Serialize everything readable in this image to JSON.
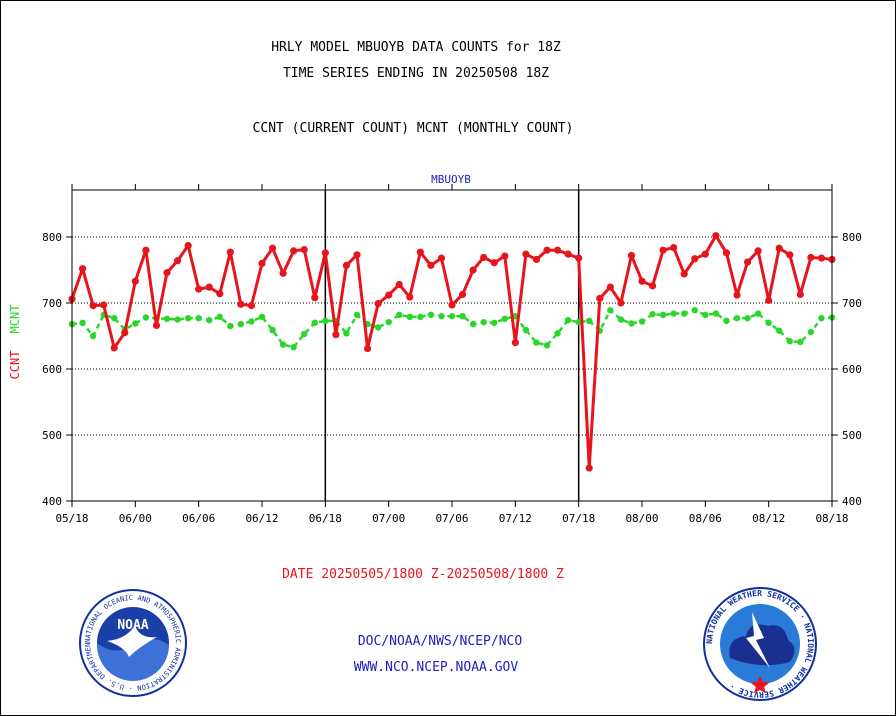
{
  "header": {
    "line1": "HRLY MODEL MBUOYB DATA COUNTS for 18Z",
    "line2": "TIME SERIES ENDING IN 20250508 18Z",
    "line3": "CCNT (CURRENT COUNT) MCNT (MONTHLY COUNT)"
  },
  "footer": {
    "date_range": "DATE 20250505/1800 Z-20250508/1800 Z",
    "org": "DOC/NOAA/NWS/NCEP/NCO",
    "url": "WWW.NCO.NCEP.NOAA.GOV"
  },
  "logos": {
    "noaa_text": "NOAA",
    "noaa_ring": "NATIONAL OCEANIC AND ATMOSPHERIC ADMINISTRATION · U.S. DEPARTMENT OF COMMERCE ·",
    "nws_ring": "NATIONAL WEATHER SERVICE · NATIONAL WEATHER SERVICE ·"
  },
  "colors": {
    "ccnt": "#e8141c",
    "mcnt": "#2ad62a",
    "text_blue": "#2020c0",
    "text_red": "#e8141c",
    "axis": "#000000"
  },
  "chart_data": {
    "type": "line",
    "title": "MBUOYB",
    "ylabel_left": "CCNT",
    "ylabel_right": "MCNT",
    "ylim": [
      400,
      870
    ],
    "yticks": [
      400,
      500,
      600,
      700,
      800
    ],
    "grid": true,
    "x_tick_labels": [
      "05/18",
      "06/00",
      "06/06",
      "06/12",
      "06/18",
      "07/00",
      "07/06",
      "07/12",
      "07/18",
      "08/00",
      "08/06",
      "08/12",
      "08/18"
    ],
    "x": [
      "05/18",
      "05/19",
      "05/20",
      "05/21",
      "05/22",
      "05/23",
      "06/00",
      "06/01",
      "06/02",
      "06/03",
      "06/04",
      "06/05",
      "06/06",
      "06/07",
      "06/08",
      "06/09",
      "06/10",
      "06/11",
      "06/12",
      "06/13",
      "06/14",
      "06/15",
      "06/16",
      "06/17",
      "06/18",
      "06/19",
      "06/20",
      "06/21",
      "06/22",
      "06/23",
      "07/00",
      "07/01",
      "07/02",
      "07/03",
      "07/04",
      "07/05",
      "07/06",
      "07/07",
      "07/08",
      "07/09",
      "07/10",
      "07/11",
      "07/12",
      "07/13",
      "07/14",
      "07/15",
      "07/16",
      "07/17",
      "07/18",
      "07/19",
      "07/20",
      "07/21",
      "07/22",
      "07/23",
      "08/00",
      "08/01",
      "08/02",
      "08/03",
      "08/04",
      "08/05",
      "08/06",
      "08/07",
      "08/08",
      "08/09",
      "08/10",
      "08/11",
      "08/12",
      "08/13",
      "08/14",
      "08/15",
      "08/16",
      "08/17",
      "08/18"
    ],
    "series": [
      {
        "name": "CCNT",
        "color": "#e8141c",
        "values": [
          706,
          752,
          696,
          697,
          632,
          655,
          733,
          780,
          666,
          746,
          764,
          787,
          721,
          724,
          714,
          777,
          698,
          696,
          760,
          783,
          745,
          779,
          781,
          708,
          776,
          652,
          757,
          773,
          631,
          699,
          712,
          728,
          709,
          777,
          757,
          768,
          697,
          713,
          750,
          769,
          761,
          771,
          640,
          774,
          766,
          780,
          780,
          774,
          768,
          450,
          707,
          724,
          700,
          772,
          733,
          726,
          780,
          784,
          744,
          767,
          774,
          802,
          776,
          712,
          762,
          779,
          704,
          783,
          773,
          713,
          769,
          768,
          766
        ]
      },
      {
        "name": "MCNT",
        "color": "#2ad62a",
        "values": [
          668,
          670,
          650,
          682,
          677,
          660,
          669,
          678,
          677,
          676,
          675,
          677,
          677,
          674,
          679,
          665,
          668,
          672,
          679,
          659,
          637,
          633,
          653,
          670,
          673,
          673,
          654,
          682,
          668,
          663,
          671,
          682,
          679,
          679,
          682,
          680,
          680,
          680,
          668,
          671,
          670,
          676,
          680,
          659,
          640,
          636,
          654,
          674,
          671,
          673,
          658,
          689,
          675,
          669,
          672,
          683,
          682,
          684,
          684,
          689,
          682,
          684,
          673,
          677,
          677,
          684,
          670,
          658,
          642,
          641,
          656,
          677,
          678
        ]
      }
    ]
  }
}
